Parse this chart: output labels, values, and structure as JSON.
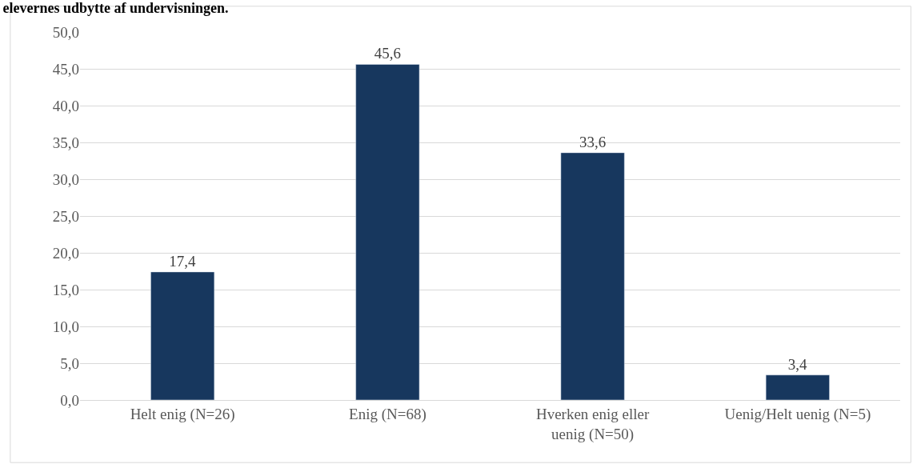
{
  "chart_data": {
    "type": "bar",
    "title": "elevernes udbytte af undervisningen.",
    "categories": [
      "Helt enig (N=26)",
      "Enig (N=68)",
      "Hverken enig eller uenig (N=50)",
      "Uenig/Helt uenig (N=5)"
    ],
    "values": [
      17.4,
      45.6,
      33.6,
      3.4
    ],
    "color": "#17375e",
    "ylim": [
      0,
      50
    ],
    "yticks": [
      {
        "value": 0,
        "label": "0,0"
      },
      {
        "value": 5,
        "label": "5,0"
      },
      {
        "value": 10,
        "label": "10,0"
      },
      {
        "value": 15,
        "label": "15,0"
      },
      {
        "value": 20,
        "label": "20,0"
      },
      {
        "value": 25,
        "label": "25,0"
      },
      {
        "value": 30,
        "label": "30,0"
      },
      {
        "value": 35,
        "label": "35,0"
      },
      {
        "value": 40,
        "label": "40,0"
      },
      {
        "value": 45,
        "label": "45,0"
      },
      {
        "value": 50,
        "label": "50,0"
      }
    ],
    "value_labels": [
      "17,4",
      "45,6",
      "33,6",
      "3,4"
    ],
    "grid": "y",
    "legend": false
  }
}
